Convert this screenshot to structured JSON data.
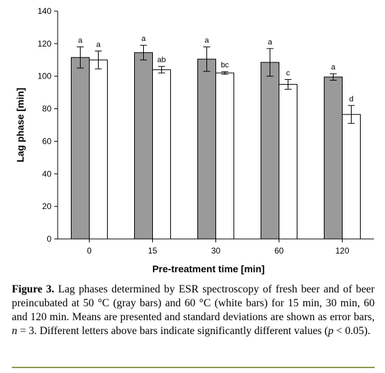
{
  "chart_data": {
    "type": "bar",
    "xlabel": "Pre-treatment time [min]",
    "ylabel": "Lag phase [min]",
    "ylim": [
      0,
      140
    ],
    "yticks": [
      0,
      20,
      40,
      60,
      80,
      100,
      120,
      140
    ],
    "categories": [
      "0",
      "15",
      "30",
      "60",
      "120"
    ],
    "series": [
      {
        "color": "#9a9a9a",
        "values": [
          111.5,
          114.5,
          110.5,
          108.5,
          99.5
        ],
        "errors": [
          6.5,
          4.5,
          7.5,
          8.5,
          2.0
        ],
        "letters": [
          "a",
          "a",
          "a",
          "a",
          "a"
        ]
      },
      {
        "color": "#ffffff",
        "values": [
          110.0,
          104.0,
          102.0,
          95.0,
          76.5
        ],
        "errors": [
          5.5,
          2.0,
          0.8,
          3.0,
          5.5
        ],
        "letters": [
          "a",
          "ab",
          "bc",
          "c",
          "d"
        ]
      }
    ],
    "legend": "none",
    "grid": false
  },
  "caption": {
    "label": "Figure 3.",
    "text": " Lag phases determined by ESR spectroscopy of fresh beer and of beer preincubated at 50 °C (gray bars) and 60 °C (white bars) for 15 min, 30 min, 60 and 120 min. Means are presented and standard deviations are shown as error bars, ",
    "n_symbol": "n",
    "n_text": " = 3. Different letters above bars indicate significantly different values (",
    "p_symbol": "p",
    "p_text": " < 0.05)."
  },
  "colors": {
    "rule": "#8a9a4a"
  }
}
